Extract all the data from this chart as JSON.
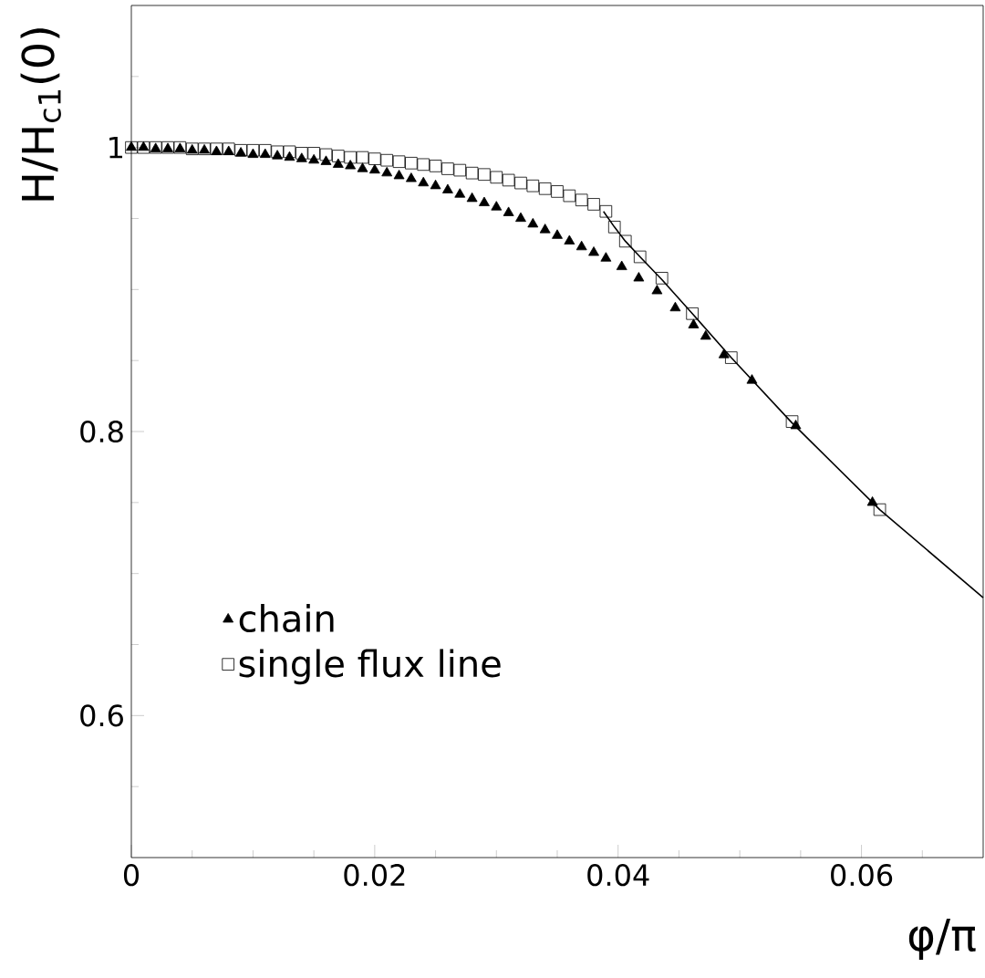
{
  "chart_data": {
    "type": "scatter",
    "xlabel": "φ/π",
    "ylabel": "H/H$_{c1}$(0)",
    "xlim": [
      0,
      0.07
    ],
    "ylim": [
      0.5,
      1.1
    ],
    "xticks": [
      0,
      {
        "value": 0.005,
        "label": null
      },
      {
        "value": 0.01,
        "label": null
      },
      {
        "value": 0.015,
        "label": null
      },
      0.02,
      {
        "value": 0.025,
        "label": null
      },
      {
        "value": 0.03,
        "label": null
      },
      {
        "value": 0.035,
        "label": null
      },
      0.04,
      {
        "value": 0.045,
        "label": null
      },
      {
        "value": 0.05,
        "label": null
      },
      {
        "value": 0.055,
        "label": null
      },
      0.06,
      {
        "value": 0.065,
        "label": null
      }
    ],
    "yticks": [
      {
        "value": 0.55,
        "label": null
      },
      0.6,
      {
        "value": 0.65,
        "label": null
      },
      {
        "value": 0.7,
        "label": null
      },
      {
        "value": 0.75,
        "label": null
      },
      0.8,
      {
        "value": 0.85,
        "label": null
      },
      {
        "value": 0.9,
        "label": null
      },
      {
        "value": 0.95,
        "label": null
      },
      1,
      {
        "value": 1.05,
        "label": null
      }
    ],
    "legend": "bottom left",
    "grid": false,
    "series": [
      {
        "name": "chain",
        "type": "scatter",
        "marker": "triangle",
        "color": "#000000",
        "x": [
          0,
          0.001,
          0.002,
          0.003,
          0.004,
          0.005,
          0.006,
          0.007,
          0.008,
          0.009,
          0.01,
          0.011,
          0.012,
          0.013,
          0.014,
          0.015,
          0.016,
          0.017,
          0.018,
          0.019,
          0.02,
          0.021,
          0.022,
          0.023,
          0.024,
          0.025,
          0.026,
          0.027,
          0.028,
          0.029,
          0.03,
          0.031,
          0.032,
          0.033,
          0.034,
          0.035,
          0.036,
          0.037,
          0.038,
          0.039,
          0.0403,
          0.0417,
          0.0432,
          0.0447,
          0.0462,
          0.0472,
          0.0487,
          0.051,
          0.0546,
          0.0609
        ],
        "values": [
          1.0,
          1.0,
          0.999,
          0.999,
          0.999,
          0.998,
          0.998,
          0.997,
          0.997,
          0.996,
          0.995,
          0.995,
          0.994,
          0.993,
          0.992,
          0.991,
          0.99,
          0.988,
          0.987,
          0.985,
          0.984,
          0.982,
          0.98,
          0.978,
          0.975,
          0.973,
          0.97,
          0.967,
          0.964,
          0.961,
          0.958,
          0.954,
          0.95,
          0.946,
          0.942,
          0.938,
          0.934,
          0.93,
          0.926,
          0.922,
          0.916,
          0.908,
          0.899,
          0.887,
          0.875,
          0.867,
          0.854,
          0.836,
          0.804,
          0.75
        ]
      },
      {
        "name": "single flux line",
        "type": "scatter",
        "marker": "square",
        "color": "#000000",
        "x": [
          0,
          0.001,
          0.002,
          0.003,
          0.004,
          0.005,
          0.006,
          0.007,
          0.008,
          0.009,
          0.01,
          0.011,
          0.012,
          0.013,
          0.014,
          0.015,
          0.016,
          0.017,
          0.018,
          0.019,
          0.02,
          0.021,
          0.022,
          0.023,
          0.024,
          0.025,
          0.026,
          0.027,
          0.028,
          0.029,
          0.03,
          0.031,
          0.032,
          0.033,
          0.034,
          0.035,
          0.036,
          0.037,
          0.038,
          0.039,
          0.0397,
          0.0406,
          0.0418,
          0.0436,
          0.0461,
          0.0493,
          0.0543,
          0.0615
        ],
        "values": [
          1.0,
          1.0,
          1.0,
          1.0,
          1.0,
          0.999,
          0.999,
          0.999,
          0.999,
          0.998,
          0.998,
          0.998,
          0.997,
          0.997,
          0.996,
          0.996,
          0.995,
          0.994,
          0.993,
          0.993,
          0.992,
          0.991,
          0.99,
          0.989,
          0.988,
          0.987,
          0.985,
          0.984,
          0.982,
          0.981,
          0.979,
          0.977,
          0.975,
          0.973,
          0.971,
          0.969,
          0.966,
          0.963,
          0.96,
          0.955,
          0.944,
          0.934,
          0.923,
          0.908,
          0.883,
          0.852,
          0.807,
          0.745
        ]
      },
      {
        "type": "line",
        "marker": "none",
        "line_style": "solid",
        "color": "#000000",
        "x": [
          0.0388,
          0.0397,
          0.0406,
          0.0418,
          0.0436,
          0.0461,
          0.0493,
          0.0543,
          0.0615,
          0.07
        ],
        "values": [
          0.955,
          0.944,
          0.934,
          0.923,
          0.907,
          0.883,
          0.852,
          0.806,
          0.745,
          0.683
        ]
      }
    ]
  }
}
